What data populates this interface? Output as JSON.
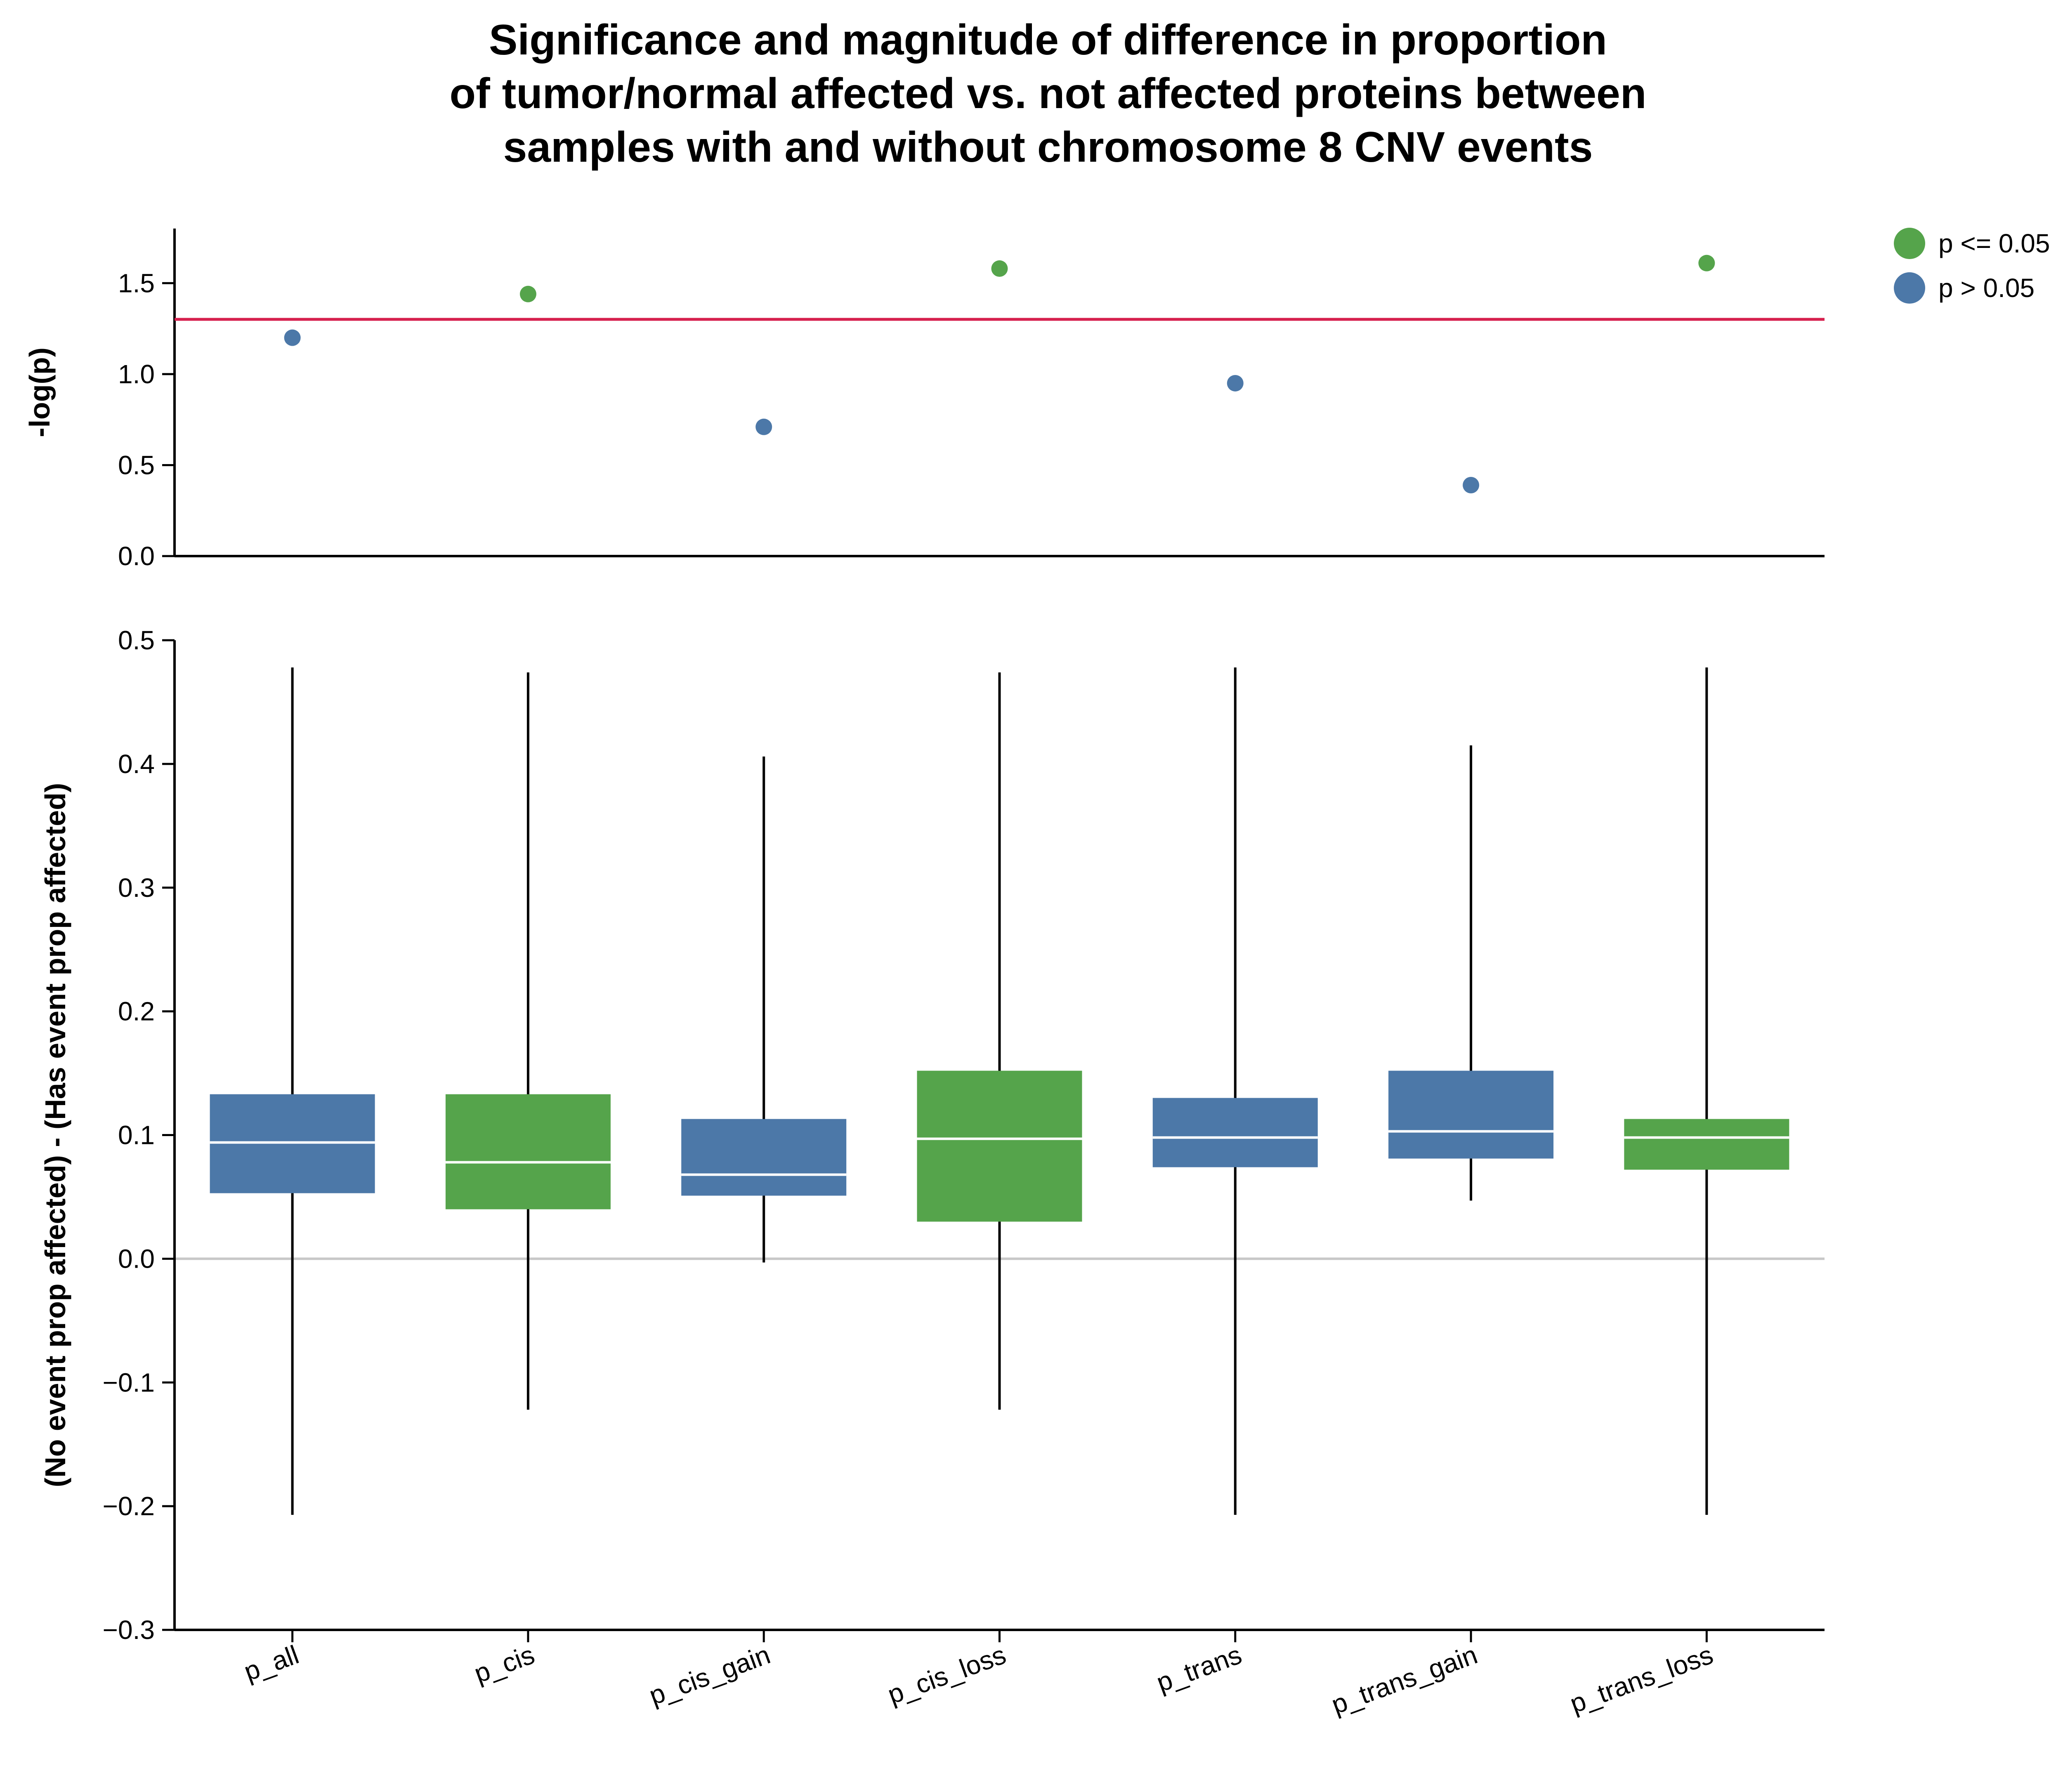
{
  "chart_data": {
    "type": "box",
    "title_lines": [
      "Significance and magnitude of difference in proportion",
      "of tumor/normal affected vs. not affected proteins between",
      "samples with and without chromosome 8 CNV events"
    ],
    "categories": [
      "p_all",
      "p_cis",
      "p_cis_gain",
      "p_cis_loss",
      "p_trans",
      "p_trans_gain",
      "p_trans_loss"
    ],
    "top_panel": {
      "type": "scatter",
      "ylabel": "-log(p)",
      "ylim": [
        0,
        1.8
      ],
      "yticks": [
        0,
        0.5,
        1,
        1.5
      ],
      "ytick_labels": [
        "0.0",
        "0.5",
        "1.0",
        "1.5"
      ],
      "values": [
        1.2,
        1.44,
        0.71,
        1.58,
        0.95,
        0.39,
        1.61
      ],
      "threshold": 1.301,
      "threshold_color": "#d6204e"
    },
    "bottom_panel": {
      "type": "box",
      "ylabel": "(No event prop affected) - (Has event prop affected)",
      "ylim": [
        -0.3,
        0.5
      ],
      "yticks": [
        -0.3,
        -0.2,
        -0.1,
        0,
        0.1,
        0.2,
        0.3,
        0.4,
        0.5
      ],
      "ytick_labels": [
        "−0.3",
        "−0.2",
        "−0.1",
        "0.0",
        "0.1",
        "0.2",
        "0.3",
        "0.4",
        "0.5"
      ],
      "zero_line": 0,
      "boxes": [
        {
          "min": -0.207,
          "q1": 0.053,
          "median": 0.094,
          "q3": 0.133,
          "max": 0.478
        },
        {
          "min": -0.122,
          "q1": 0.04,
          "median": 0.078,
          "q3": 0.133,
          "max": 0.474
        },
        {
          "min": -0.003,
          "q1": 0.051,
          "median": 0.068,
          "q3": 0.113,
          "max": 0.406
        },
        {
          "min": -0.122,
          "q1": 0.03,
          "median": 0.097,
          "q3": 0.152,
          "max": 0.474
        },
        {
          "min": -0.207,
          "q1": 0.074,
          "median": 0.098,
          "q3": 0.13,
          "max": 0.478
        },
        {
          "min": 0.047,
          "q1": 0.081,
          "median": 0.103,
          "q3": 0.152,
          "max": 0.415
        },
        {
          "min": -0.207,
          "q1": 0.072,
          "median": 0.098,
          "q3": 0.113,
          "max": 0.478
        }
      ]
    },
    "significant": [
      false,
      true,
      false,
      true,
      false,
      false,
      true
    ],
    "legend": {
      "position": "top-right",
      "entries": [
        {
          "label": "p <= 0.05",
          "color": "#55a44b"
        },
        {
          "label": "p > 0.05",
          "color": "#4c78a8"
        }
      ]
    },
    "colors": {
      "significant": "#55a44b",
      "not_significant": "#4c78a8",
      "median_line": "#ffffff",
      "zero_line": "#c8c8c8"
    }
  }
}
